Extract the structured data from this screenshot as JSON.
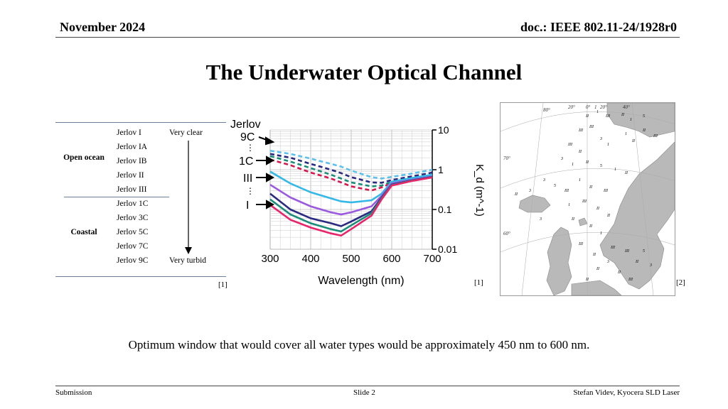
{
  "header": {
    "date": "November 2024",
    "doc_id": "doc.: IEEE 802.11-24/1928r0"
  },
  "title": "The Underwater Optical Channel",
  "table": {
    "groups": [
      "Open ocean",
      "Coastal"
    ],
    "rows": [
      "Jerlov I",
      "Jerlov IA",
      "Jerlov IB",
      "Jerlov II",
      "Jerlov III",
      "Jerlov 1C",
      "Jerlov 3C",
      "Jerlov 5C",
      "Jerlov 7C",
      "Jerlov 9C"
    ],
    "clear_label": "Very clear",
    "turbid_label": "Very turbid",
    "ref": "[1]"
  },
  "chart_data": {
    "type": "line",
    "xlabel": "Wavelength (nm)",
    "ylabel": "K_d (m^-1)",
    "xlim": [
      300,
      700
    ],
    "ylim": [
      0.01,
      10
    ],
    "yscale": "log",
    "x_ticks": [
      "300",
      "400",
      "500",
      "600",
      "700"
    ],
    "y_ticks": [
      "10",
      "1",
      "0.1",
      "0.01"
    ],
    "legend_title": "Jerlov",
    "annotations": [
      "9C",
      "1C",
      "III",
      "I"
    ],
    "x": [
      300,
      350,
      400,
      450,
      475,
      500,
      550,
      575,
      600,
      650,
      700
    ],
    "series": [
      {
        "name": "9C",
        "style": "dashed",
        "color": "#5bc0eb",
        "values": [
          3.0,
          2.5,
          1.9,
          1.4,
          1.2,
          0.95,
          0.65,
          0.6,
          0.66,
          0.8,
          1.0
        ]
      },
      {
        "name": "",
        "style": "dashed",
        "color": "#2a2a80",
        "values": [
          2.5,
          2.0,
          1.4,
          1.0,
          0.82,
          0.65,
          0.48,
          0.47,
          0.55,
          0.68,
          0.85
        ]
      },
      {
        "name": "",
        "style": "dashed",
        "color": "#1a8c7a",
        "values": [
          2.2,
          1.6,
          1.1,
          0.75,
          0.6,
          0.48,
          0.38,
          0.4,
          0.5,
          0.6,
          0.75
        ]
      },
      {
        "name": "1C",
        "style": "dashed",
        "color": "#d6174d",
        "values": [
          1.8,
          1.3,
          0.85,
          0.6,
          0.48,
          0.38,
          0.3,
          0.36,
          0.46,
          0.56,
          0.7
        ]
      },
      {
        "name": "III",
        "style": "solid",
        "color": "#35b8e8",
        "values": [
          0.9,
          0.45,
          0.27,
          0.19,
          0.16,
          0.15,
          0.17,
          0.25,
          0.5,
          0.62,
          0.75
        ]
      },
      {
        "name": "",
        "style": "solid",
        "color": "#9b59e0",
        "values": [
          0.42,
          0.2,
          0.12,
          0.085,
          0.075,
          0.085,
          0.12,
          0.22,
          0.45,
          0.56,
          0.68
        ]
      },
      {
        "name": "",
        "style": "solid",
        "color": "#2a2a80",
        "values": [
          0.25,
          0.1,
          0.06,
          0.045,
          0.038,
          0.05,
          0.09,
          0.2,
          0.42,
          0.54,
          0.66
        ]
      },
      {
        "name": "",
        "style": "solid",
        "color": "#1a8c7a",
        "values": [
          0.18,
          0.075,
          0.045,
          0.032,
          0.028,
          0.04,
          0.08,
          0.19,
          0.41,
          0.53,
          0.65
        ]
      },
      {
        "name": "I",
        "style": "solid",
        "color": "#e8246b",
        "values": [
          0.13,
          0.055,
          0.035,
          0.025,
          0.022,
          0.032,
          0.07,
          0.18,
          0.4,
          0.52,
          0.64
        ]
      }
    ],
    "ref": "[1]"
  },
  "map": {
    "ref": "[2]",
    "labels": [
      "80°",
      "70°",
      "60°",
      "20°",
      "0°",
      "1",
      "20°",
      "40°"
    ]
  },
  "caption": "Optimum window that would cover all water types would be approximately 450 nm to 600 nm.",
  "footer": {
    "left": "Submission",
    "center": "Slide 2",
    "right": "Stefan Videv, Kyocera SLD Laser"
  }
}
